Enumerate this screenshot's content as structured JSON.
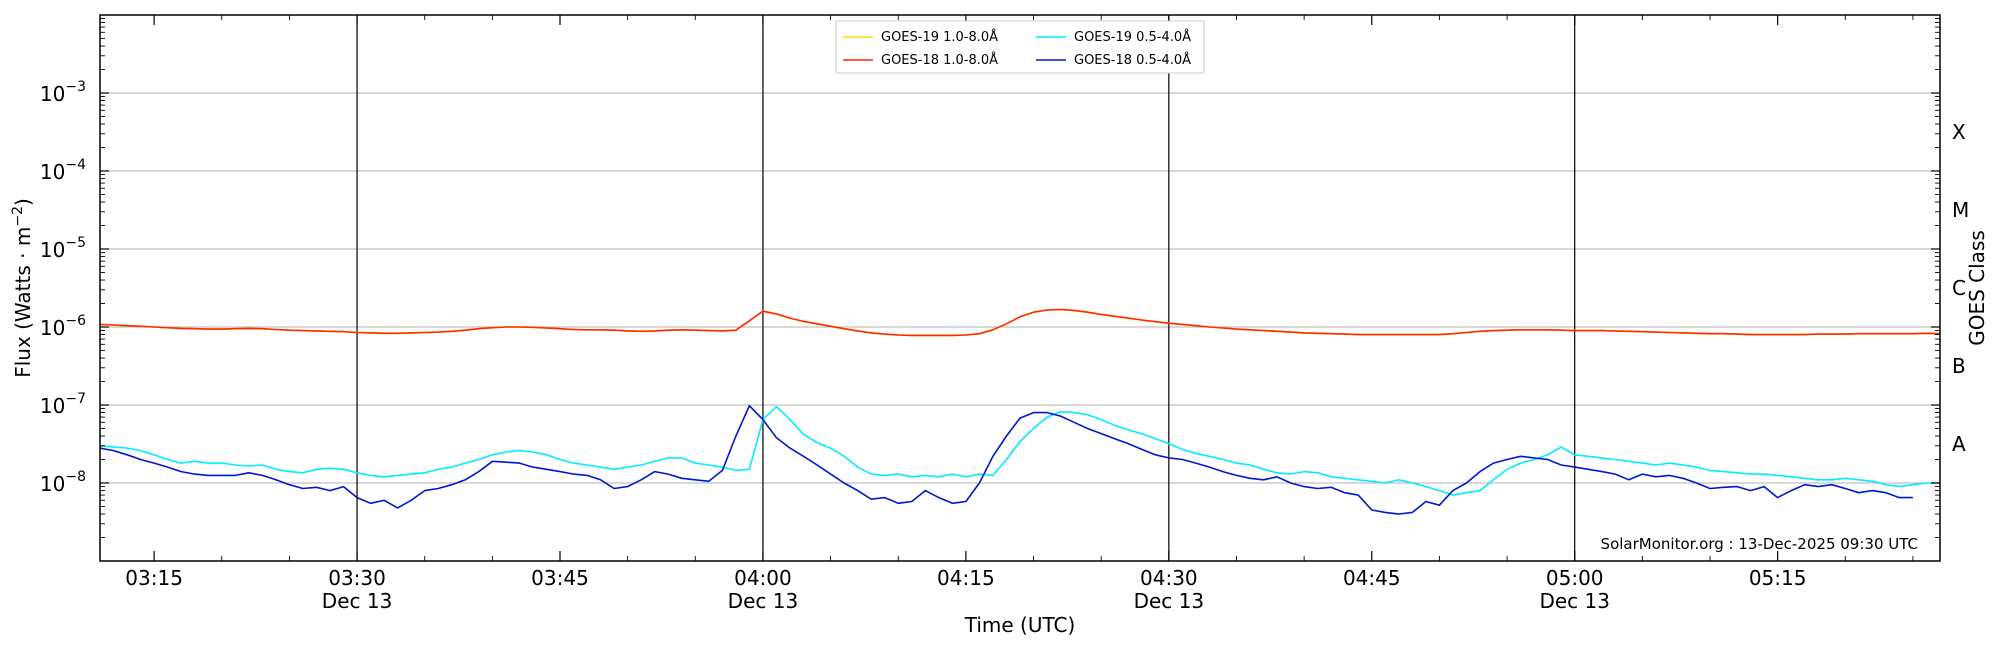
{
  "chart_data": {
    "type": "line",
    "title": "",
    "xlabel": "Time (UTC)",
    "ylabel": "Flux (Watts · m⁻²)",
    "y_scale": "log",
    "ylim": [
      1e-09,
      0.01
    ],
    "xlim_minutes_after_0300": [
      11,
      147
    ],
    "x_ticks": [
      {
        "minute": 15,
        "label": "03:15",
        "sublabel": ""
      },
      {
        "minute": 30,
        "label": "03:30",
        "sublabel": "Dec 13"
      },
      {
        "minute": 45,
        "label": "03:45",
        "sublabel": ""
      },
      {
        "minute": 60,
        "label": "04:00",
        "sublabel": "Dec 13"
      },
      {
        "minute": 75,
        "label": "04:15",
        "sublabel": ""
      },
      {
        "minute": 90,
        "label": "04:30",
        "sublabel": "Dec 13"
      },
      {
        "minute": 105,
        "label": "04:45",
        "sublabel": ""
      },
      {
        "minute": 120,
        "label": "05:00",
        "sublabel": "Dec 13"
      },
      {
        "minute": 135,
        "label": "05:15",
        "sublabel": ""
      }
    ],
    "vertical_lines_at_minutes": [
      30,
      60,
      90,
      120
    ],
    "y_ticks": [
      {
        "exp": -3,
        "label": "10",
        "sup": "−3"
      },
      {
        "exp": -4,
        "label": "10",
        "sup": "−4"
      },
      {
        "exp": -5,
        "label": "10",
        "sup": "−5"
      },
      {
        "exp": -6,
        "label": "10",
        "sup": "−6"
      },
      {
        "exp": -7,
        "label": "10",
        "sup": "−7"
      },
      {
        "exp": -8,
        "label": "10",
        "sup": "−8"
      }
    ],
    "grid_horizontal": true,
    "right_axis_label": "GOES Class",
    "goes_classes": [
      {
        "label": "X",
        "exp": -3.5
      },
      {
        "label": "M",
        "exp": -4.5
      },
      {
        "label": "C",
        "exp": -5.5
      },
      {
        "label": "B",
        "exp": -6.5
      },
      {
        "label": "A",
        "exp": -7.5
      }
    ],
    "legend_position": "top-center",
    "legend": [
      {
        "name": "GOES-19 1.0-8.0Å",
        "color": "#ffd700"
      },
      {
        "name": "GOES-18 1.0-8.0Å",
        "color": "#ff2a00"
      },
      {
        "name": "GOES-19 0.5-4.0Å",
        "color": "#00eeff"
      },
      {
        "name": "GOES-18 0.5-4.0Å",
        "color": "#0018cc"
      }
    ],
    "x_minutes_after_0300": [
      11,
      12,
      13,
      14,
      15,
      16,
      17,
      18,
      19,
      20,
      21,
      22,
      23,
      24,
      25,
      26,
      27,
      28,
      29,
      30,
      31,
      32,
      33,
      34,
      35,
      36,
      37,
      38,
      39,
      40,
      41,
      42,
      43,
      44,
      45,
      46,
      47,
      48,
      49,
      50,
      51,
      52,
      53,
      54,
      55,
      56,
      57,
      58,
      59,
      60,
      61,
      62,
      63,
      64,
      65,
      66,
      67,
      68,
      69,
      70,
      71,
      72,
      73,
      74,
      75,
      76,
      77,
      78,
      79,
      80,
      81,
      82,
      83,
      84,
      85,
      86,
      87,
      88,
      89,
      90,
      91,
      92,
      93,
      94,
      95,
      96,
      97,
      98,
      99,
      100,
      101,
      102,
      103,
      104,
      105,
      106,
      107,
      108,
      109,
      110,
      111,
      112,
      113,
      114,
      115,
      116,
      117,
      118,
      119,
      120,
      121,
      122,
      123,
      124,
      125,
      126,
      127,
      128,
      129,
      130,
      131,
      132,
      133,
      134,
      135,
      136,
      137,
      138,
      139,
      140,
      141,
      142,
      143,
      144,
      145,
      146,
      147
    ],
    "series": [
      {
        "name": "GOES-19 1.0-8.0Å",
        "color": "#ffd700",
        "values": [
          1.08e-06,
          1.06e-06,
          1.04e-06,
          1.02e-06,
          1e-06,
          9.8e-07,
          9.6e-07,
          9.5e-07,
          9.4e-07,
          9.4e-07,
          9.5e-07,
          9.6e-07,
          9.5e-07,
          9.3e-07,
          9.1e-07,
          9e-07,
          8.9e-07,
          8.8e-07,
          8.7e-07,
          8.5e-07,
          8.4e-07,
          8.3e-07,
          8.3e-07,
          8.4e-07,
          8.5e-07,
          8.6e-07,
          8.8e-07,
          9.1e-07,
          9.5e-07,
          9.8e-07,
          1e-06,
          1e-06,
          9.9e-07,
          9.7e-07,
          9.5e-07,
          9.3e-07,
          9.2e-07,
          9.2e-07,
          9.1e-07,
          8.9e-07,
          8.8e-07,
          8.9e-07,
          9.1e-07,
          9.2e-07,
          9.1e-07,
          9e-07,
          8.9e-07,
          9.1e-07,
          1.2e-06,
          1.58e-06,
          1.45e-06,
          1.3e-06,
          1.18e-06,
          1.1e-06,
          1.02e-06,
          9.5e-07,
          8.9e-07,
          8.4e-07,
          8.1e-07,
          7.9e-07,
          7.8e-07,
          7.8e-07,
          7.8e-07,
          7.8e-07,
          7.9e-07,
          8.2e-07,
          9.2e-07,
          1.1e-06,
          1.35e-06,
          1.55e-06,
          1.65e-06,
          1.67e-06,
          1.63e-06,
          1.55e-06,
          1.45e-06,
          1.37e-06,
          1.3e-06,
          1.23e-06,
          1.17e-06,
          1.12e-06,
          1.08e-06,
          1.04e-06,
          1e-06,
          9.7e-07,
          9.4e-07,
          9.2e-07,
          9e-07,
          8.8e-07,
          8.6e-07,
          8.4e-07,
          8.3e-07,
          8.2e-07,
          8.1e-07,
          8e-07,
          8e-07,
          8e-07,
          8e-07,
          8e-07,
          8e-07,
          8e-07,
          8.2e-07,
          8.5e-07,
          8.8e-07,
          9e-07,
          9.1e-07,
          9.2e-07,
          9.2e-07,
          9.2e-07,
          9.1e-07,
          9e-07,
          9e-07,
          9e-07,
          8.9e-07,
          8.8e-07,
          8.7e-07,
          8.6e-07,
          8.5e-07,
          8.4e-07,
          8.3e-07,
          8.2e-07,
          8.2e-07,
          8.1e-07,
          8e-07,
          8e-07,
          8e-07,
          8e-07,
          8e-07,
          8.1e-07,
          8.1e-07,
          8.1e-07,
          8.2e-07,
          8.2e-07,
          8.2e-07,
          8.2e-07,
          8.2e-07,
          8.3e-07,
          8.2e-07
        ]
      },
      {
        "name": "GOES-18 1.0-8.0Å",
        "color": "#ff2a00",
        "values": [
          1.08e-06,
          1.06e-06,
          1.04e-06,
          1.02e-06,
          1e-06,
          9.8e-07,
          9.6e-07,
          9.5e-07,
          9.4e-07,
          9.4e-07,
          9.5e-07,
          9.6e-07,
          9.5e-07,
          9.3e-07,
          9.1e-07,
          9e-07,
          8.9e-07,
          8.8e-07,
          8.7e-07,
          8.5e-07,
          8.4e-07,
          8.3e-07,
          8.3e-07,
          8.4e-07,
          8.5e-07,
          8.6e-07,
          8.8e-07,
          9.1e-07,
          9.5e-07,
          9.8e-07,
          1e-06,
          1e-06,
          9.9e-07,
          9.7e-07,
          9.5e-07,
          9.3e-07,
          9.2e-07,
          9.2e-07,
          9.1e-07,
          8.9e-07,
          8.8e-07,
          8.9e-07,
          9.1e-07,
          9.2e-07,
          9.1e-07,
          9e-07,
          8.9e-07,
          9.1e-07,
          1.2e-06,
          1.6e-06,
          1.47e-06,
          1.3e-06,
          1.18e-06,
          1.1e-06,
          1.02e-06,
          9.5e-07,
          8.9e-07,
          8.4e-07,
          8.1e-07,
          7.9e-07,
          7.8e-07,
          7.8e-07,
          7.8e-07,
          7.8e-07,
          7.9e-07,
          8.2e-07,
          9.2e-07,
          1.1e-06,
          1.35e-06,
          1.55e-06,
          1.65e-06,
          1.68e-06,
          1.63e-06,
          1.55e-06,
          1.45e-06,
          1.37e-06,
          1.3e-06,
          1.23e-06,
          1.17e-06,
          1.12e-06,
          1.08e-06,
          1.04e-06,
          1e-06,
          9.7e-07,
          9.4e-07,
          9.2e-07,
          9e-07,
          8.8e-07,
          8.6e-07,
          8.4e-07,
          8.3e-07,
          8.2e-07,
          8.1e-07,
          8e-07,
          8e-07,
          8e-07,
          8e-07,
          8e-07,
          8e-07,
          8e-07,
          8.2e-07,
          8.5e-07,
          8.8e-07,
          9e-07,
          9.1e-07,
          9.2e-07,
          9.2e-07,
          9.2e-07,
          9.1e-07,
          9e-07,
          9e-07,
          9e-07,
          8.9e-07,
          8.8e-07,
          8.7e-07,
          8.6e-07,
          8.5e-07,
          8.4e-07,
          8.3e-07,
          8.2e-07,
          8.2e-07,
          8.1e-07,
          8e-07,
          8e-07,
          8e-07,
          8e-07,
          8e-07,
          8.1e-07,
          8.1e-07,
          8.1e-07,
          8.2e-07,
          8.2e-07,
          8.2e-07,
          8.2e-07,
          8.2e-07,
          8.3e-07,
          8.2e-07
        ]
      },
      {
        "name": "GOES-19 0.5-4.0Å",
        "color": "#00eeff",
        "values": [
          3e-08,
          2.9e-08,
          2.8e-08,
          2.6e-08,
          2.3e-08,
          2e-08,
          1.8e-08,
          1.9e-08,
          1.8e-08,
          1.8e-08,
          1.7e-08,
          1.65e-08,
          1.7e-08,
          1.5e-08,
          1.4e-08,
          1.35e-08,
          1.5e-08,
          1.55e-08,
          1.5e-08,
          1.35e-08,
          1.25e-08,
          1.2e-08,
          1.25e-08,
          1.3e-08,
          1.35e-08,
          1.5e-08,
          1.6e-08,
          1.8e-08,
          2e-08,
          2.3e-08,
          2.5e-08,
          2.6e-08,
          2.5e-08,
          2.3e-08,
          2e-08,
          1.8e-08,
          1.7e-08,
          1.6e-08,
          1.5e-08,
          1.6e-08,
          1.7e-08,
          1.9e-08,
          2.1e-08,
          2.1e-08,
          1.8e-08,
          1.7e-08,
          1.6e-08,
          1.45e-08,
          1.5e-08,
          6.5e-08,
          9.5e-08,
          6.5e-08,
          4.2e-08,
          3.3e-08,
          2.8e-08,
          2.2e-08,
          1.6e-08,
          1.3e-08,
          1.25e-08,
          1.3e-08,
          1.2e-08,
          1.25e-08,
          1.2e-08,
          1.3e-08,
          1.2e-08,
          1.3e-08,
          1.25e-08,
          2e-08,
          3.4e-08,
          5e-08,
          7e-08,
          8.2e-08,
          8e-08,
          7.5e-08,
          6.5e-08,
          5.5e-08,
          4.8e-08,
          4.3e-08,
          3.7e-08,
          3.2e-08,
          2.7e-08,
          2.4e-08,
          2.2e-08,
          2e-08,
          1.8e-08,
          1.7e-08,
          1.5e-08,
          1.35e-08,
          1.3e-08,
          1.4e-08,
          1.35e-08,
          1.2e-08,
          1.15e-08,
          1.1e-08,
          1.05e-08,
          1e-08,
          1.1e-08,
          1e-08,
          9e-09,
          8e-09,
          7e-09,
          7.5e-09,
          8e-09,
          1.1e-08,
          1.5e-08,
          1.8e-08,
          2e-08,
          2.3e-08,
          2.9e-08,
          2.3e-08,
          2.2e-08,
          2.1e-08,
          2e-08,
          1.9e-08,
          1.8e-08,
          1.7e-08,
          1.8e-08,
          1.7e-08,
          1.6e-08,
          1.45e-08,
          1.4e-08,
          1.35e-08,
          1.3e-08,
          1.3e-08,
          1.25e-08,
          1.2e-08,
          1.15e-08,
          1.1e-08,
          1.1e-08,
          1.15e-08,
          1.1e-08,
          1.05e-08,
          9.5e-09,
          9e-09,
          9.5e-09,
          1e-08,
          1e-08
        ]
      },
      {
        "name": "GOES-18 0.5-4.0Å",
        "color": "#0018cc",
        "values": [
          2.8e-08,
          2.6e-08,
          2.3e-08,
          2e-08,
          1.8e-08,
          1.6e-08,
          1.4e-08,
          1.3e-08,
          1.25e-08,
          1.25e-08,
          1.25e-08,
          1.35e-08,
          1.25e-08,
          1.1e-08,
          9.5e-09,
          8.5e-09,
          8.8e-09,
          8e-09,
          9e-09,
          6.5e-09,
          5.5e-09,
          6e-09,
          4.8e-09,
          6e-09,
          8e-09,
          8.5e-09,
          9.5e-09,
          1.1e-08,
          1.4e-08,
          1.9e-08,
          1.85e-08,
          1.8e-08,
          1.6e-08,
          1.5e-08,
          1.4e-08,
          1.3e-08,
          1.25e-08,
          1.1e-08,
          8.5e-09,
          9e-09,
          1.1e-08,
          1.4e-08,
          1.3e-08,
          1.15e-08,
          1.1e-08,
          1.05e-08,
          1.45e-08,
          4e-08,
          9.8e-08,
          6.5e-08,
          3.8e-08,
          2.8e-08,
          2.2e-08,
          1.7e-08,
          1.3e-08,
          1e-08,
          8e-09,
          6.2e-09,
          6.5e-09,
          5.5e-09,
          5.8e-09,
          8e-09,
          6.5e-09,
          5.5e-09,
          5.8e-09,
          1e-08,
          2.2e-08,
          4e-08,
          6.8e-08,
          8e-08,
          8e-08,
          7.2e-08,
          6e-08,
          5e-08,
          4.3e-08,
          3.7e-08,
          3.2e-08,
          2.7e-08,
          2.3e-08,
          2.1e-08,
          2e-08,
          1.8e-08,
          1.6e-08,
          1.4e-08,
          1.25e-08,
          1.15e-08,
          1.1e-08,
          1.2e-08,
          1e-08,
          9e-09,
          8.5e-09,
          8.8e-09,
          7.5e-09,
          7e-09,
          4.5e-09,
          4.2e-09,
          4e-09,
          4.2e-09,
          5.8e-09,
          5.2e-09,
          8e-09,
          1e-08,
          1.4e-08,
          1.8e-08,
          2e-08,
          2.2e-08,
          2.1e-08,
          2e-08,
          1.7e-08,
          1.6e-08,
          1.5e-08,
          1.4e-08,
          1.3e-08,
          1.1e-08,
          1.3e-08,
          1.2e-08,
          1.25e-08,
          1.15e-08,
          1e-08,
          8.5e-09,
          8.8e-09,
          9e-09,
          8e-09,
          9e-09,
          6.5e-09,
          8e-09,
          9.5e-09,
          9e-09,
          9.5e-09,
          8.5e-09,
          7.5e-09,
          8e-09,
          7.5e-09,
          6.5e-09,
          6.5e-09
        ]
      }
    ],
    "annotation": "SolarMonitor.org : 13-Dec-2025 09:30 UTC"
  }
}
